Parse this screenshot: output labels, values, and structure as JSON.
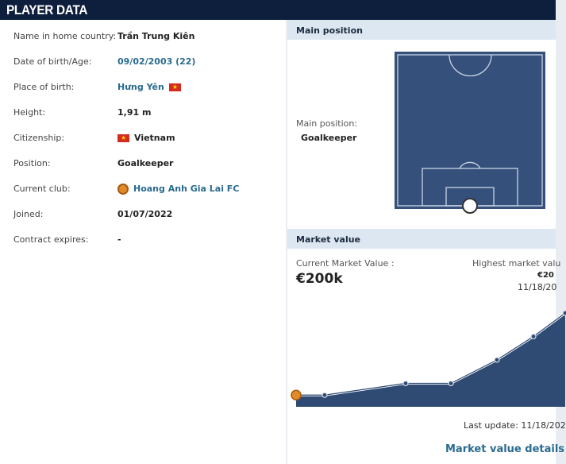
{
  "header": {
    "title": "PLAYER DATA"
  },
  "player": {
    "rows": [
      {
        "label": "Name in home country:",
        "value": "Trần Trung Kiên"
      },
      {
        "label": "Date of birth/Age:",
        "value": "09/02/2003 (22)"
      },
      {
        "label": "Place of birth:",
        "value": "Hưng Yên"
      },
      {
        "label": "Height:",
        "value": "1,91 m"
      },
      {
        "label": "Citizenship:",
        "value": "Vietnam"
      },
      {
        "label": "Position:",
        "value": "Goalkeeper"
      },
      {
        "label": "Current club:",
        "value": "Hoang Anh Gia Lai FC"
      },
      {
        "label": "Joined:",
        "value": "01/07/2022"
      },
      {
        "label": "Contract expires:",
        "value": "-"
      }
    ]
  },
  "main_position": {
    "title": "Main position",
    "label": "Main position:",
    "value": "Goalkeeper"
  },
  "market_value": {
    "title": "Market value",
    "current_label": "Current Market Value :",
    "current_value": "€200k",
    "highest_label": "Highest market valu",
    "highest_value": "€20",
    "highest_date": "11/18/20",
    "last_update": "Last update: 11/18/202",
    "details_link": "Market value details"
  },
  "colors": {
    "header": "#0e1f3d",
    "panel_header": "#dde7f1",
    "pitch": "#35507a",
    "link": "#2a6b8f",
    "flag": "#d52b1e"
  },
  "chart_data": {
    "type": "area",
    "unit": "€k",
    "values": [
      25,
      25,
      50,
      50,
      100,
      150,
      200
    ]
  }
}
